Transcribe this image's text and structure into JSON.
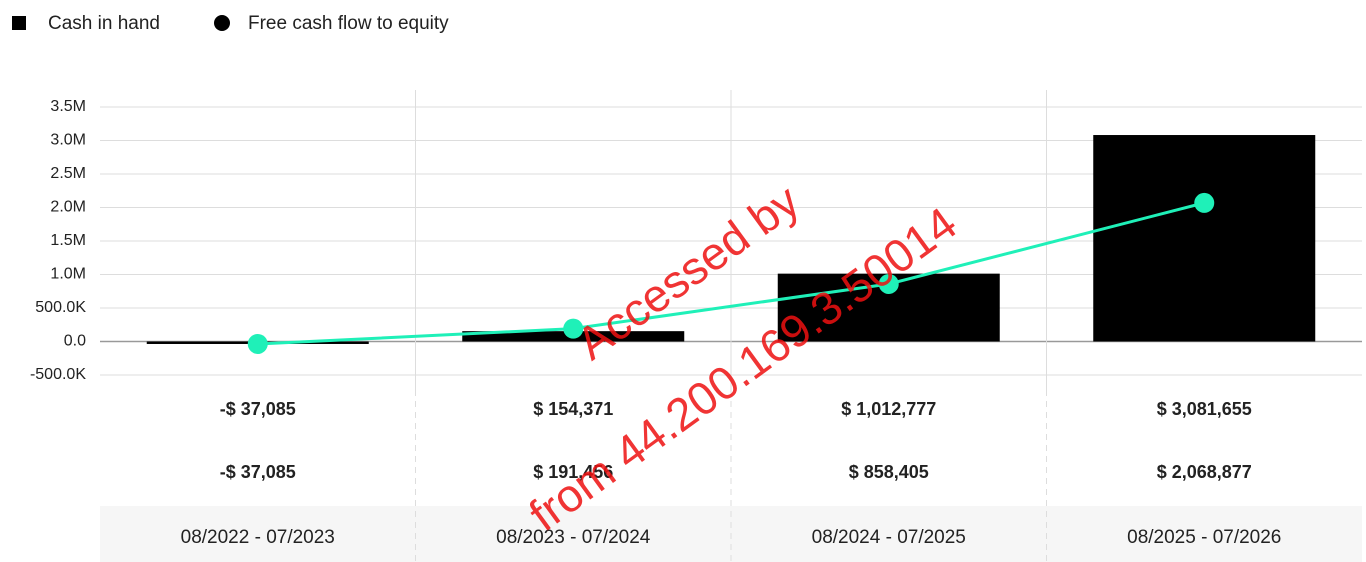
{
  "chart_data": {
    "type": "bar_line",
    "categories": [
      "08/2022 - 07/2023",
      "08/2023 - 07/2024",
      "08/2024 - 07/2025",
      "08/2025 - 07/2026"
    ],
    "series": [
      {
        "name": "Cash in hand",
        "type": "bar",
        "color": "#000000",
        "values": [
          -37085,
          154371,
          1012777,
          3081655
        ],
        "value_labels": [
          "-$ 37,085",
          "$ 154,371",
          "$ 1,012,777",
          "$ 3,081,655"
        ]
      },
      {
        "name": "Free cash flow to equity",
        "type": "line",
        "color": "#1ff0b8",
        "values": [
          -37085,
          191456,
          858405,
          2068877
        ],
        "value_labels": [
          "-$ 37,085",
          "$ 191,456",
          "$ 858,405",
          "$ 2,068,877"
        ]
      }
    ],
    "ylim": [
      -500000,
      3500000
    ],
    "yticks": [
      {
        "value": -500000,
        "label": "-500.0K"
      },
      {
        "value": 0,
        "label": "0.0"
      },
      {
        "value": 500000,
        "label": "500.0K"
      },
      {
        "value": 1000000,
        "label": "1.0M"
      },
      {
        "value": 1500000,
        "label": "1.5M"
      },
      {
        "value": 2000000,
        "label": "2.0M"
      },
      {
        "value": 2500000,
        "label": "2.5M"
      },
      {
        "value": 3000000,
        "label": "3.0M"
      },
      {
        "value": 3500000,
        "label": "3.5M"
      }
    ],
    "grid": true,
    "legend": "top-left",
    "watermark": [
      "Accessed by",
      "from 44.200.169.3.50014"
    ]
  }
}
